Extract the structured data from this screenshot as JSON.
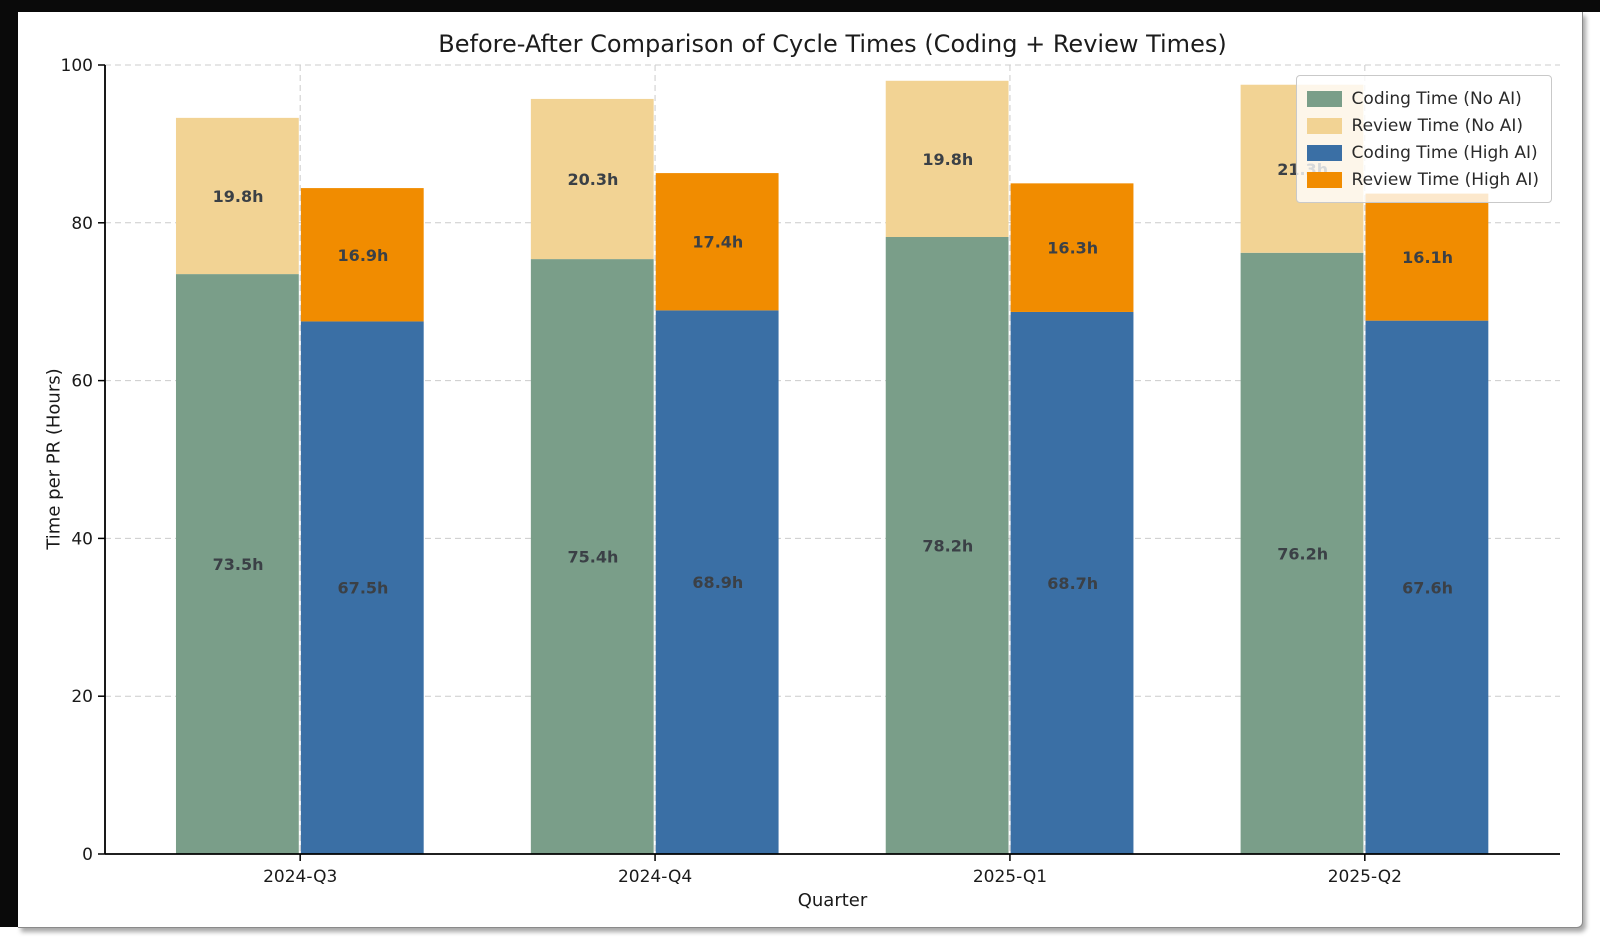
{
  "window": {
    "background": "#ffffff",
    "frame_color": "#0a0a0a"
  },
  "chart_data": {
    "type": "bar",
    "variant": "grouped-stacked",
    "title": "Before-After Comparison of Cycle Times (Coding + Review Times)",
    "xlabel": "Quarter",
    "ylabel": "Time per PR (Hours)",
    "ylim": [
      0,
      100
    ],
    "yticks": [
      0,
      20,
      40,
      60,
      80,
      100
    ],
    "categories": [
      "2024-Q3",
      "2024-Q4",
      "2025-Q1",
      "2025-Q2"
    ],
    "series": [
      {
        "name": "Coding Time (No AI)",
        "stack": "no_ai",
        "color": "#7a9e89",
        "values": [
          73.5,
          75.4,
          78.2,
          76.2
        ]
      },
      {
        "name": "Review Time (No AI)",
        "stack": "no_ai",
        "color": "#f2d394",
        "values": [
          19.8,
          20.3,
          19.8,
          21.3
        ]
      },
      {
        "name": "Coding Time (High AI)",
        "stack": "high_ai",
        "color": "#3a6fa5",
        "values": [
          67.5,
          68.9,
          68.7,
          67.6
        ]
      },
      {
        "name": "Review Time (High AI)",
        "stack": "high_ai",
        "color": "#f18c00",
        "values": [
          16.9,
          17.4,
          16.3,
          16.1
        ]
      }
    ],
    "bar_label_suffix": "h",
    "bar_label_color": "#3b4046",
    "grid": true,
    "gridline_color": "#cccccc",
    "legend_position": "upper-right",
    "axis_color": "#000000",
    "tick_label_color": "#1a1a1a"
  }
}
